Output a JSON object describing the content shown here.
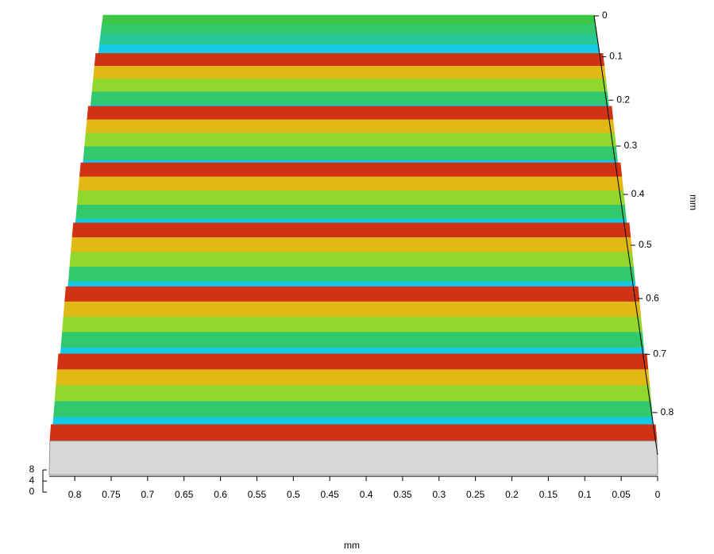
{
  "chart_data": {
    "type": "surface3d",
    "xlabel": "mm",
    "ylabel": "mm",
    "xlim": [
      0.835,
      0
    ],
    "xticks": [
      0.8,
      0.75,
      0.7,
      0.65,
      0.6,
      0.55,
      0.5,
      0.45,
      0.4,
      0.35,
      0.3,
      0.25,
      0.2,
      0.15,
      0.1,
      0.05,
      0
    ],
    "ylim": [
      0,
      0.87
    ],
    "yticks": [
      0,
      0.1,
      0.2,
      0.3,
      0.4,
      0.5,
      0.6,
      0.7,
      0.8
    ],
    "zlim": [
      0,
      8
    ],
    "zticks": [
      0,
      4,
      8
    ],
    "colormap": [
      "#0a1eb4",
      "#14c8e6",
      "#3cc846",
      "#e6e614",
      "#d23214"
    ],
    "profile_y": [
      0,
      0.02,
      0.04,
      0.06,
      0.08,
      0.1,
      0.12,
      0.14,
      0.16,
      0.18,
      0.2,
      0.22,
      0.24,
      0.26,
      0.28,
      0.3,
      0.32,
      0.34,
      0.36,
      0.38,
      0.4,
      0.42,
      0.44,
      0.46,
      0.48,
      0.5,
      0.52,
      0.54,
      0.56,
      0.58,
      0.6,
      0.62,
      0.64,
      0.66,
      0.68,
      0.7,
      0.72,
      0.74,
      0.76,
      0.78,
      0.8,
      0.82,
      0.84,
      0.86
    ],
    "profile_z": [
      4,
      3.5,
      3,
      2,
      1.5,
      1,
      8,
      6.5,
      5,
      3.5,
      2,
      1,
      8,
      6.5,
      5,
      3.5,
      2,
      1,
      8,
      6.5,
      5,
      3.5,
      2,
      1,
      8,
      6.5,
      5,
      3.5,
      2,
      1,
      8,
      6.5,
      5,
      3.5,
      2,
      1,
      8,
      6.5,
      5,
      3.5,
      2,
      1,
      8,
      6.5
    ]
  }
}
